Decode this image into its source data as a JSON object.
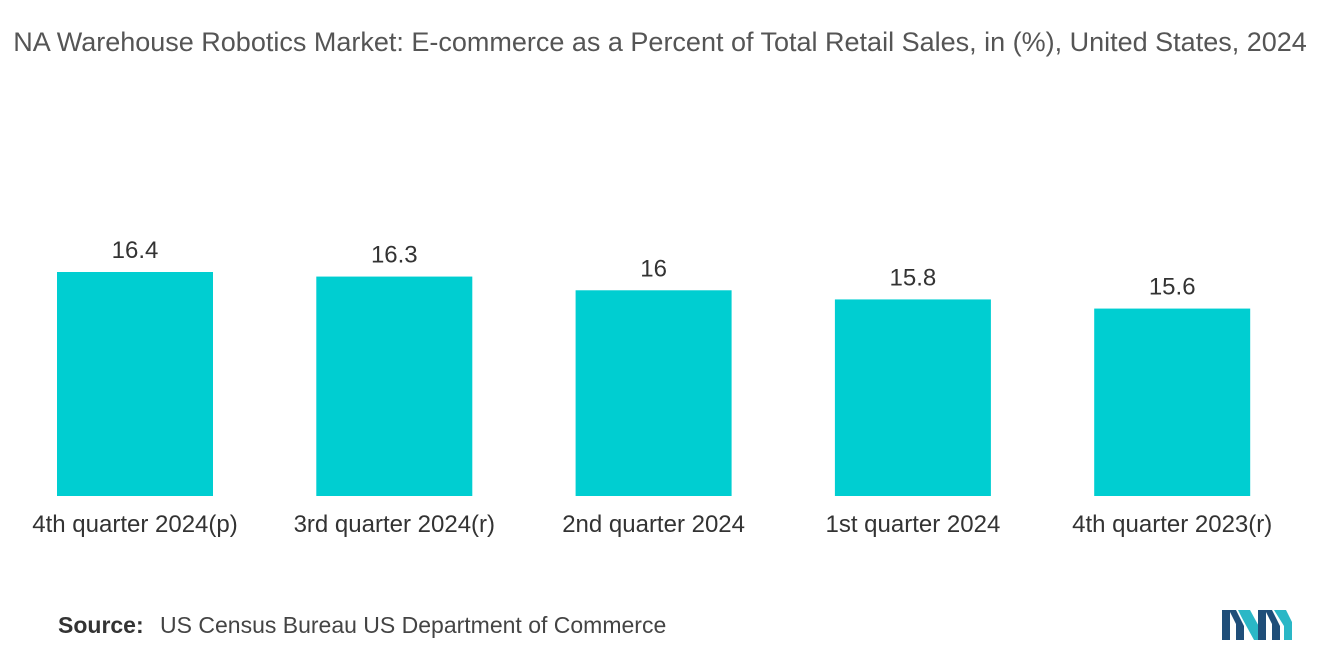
{
  "title": "NA Warehouse Robotics Market: E-commerce as a Percent of Total Retail Sales, in (%), United States, 2024",
  "chart_data": {
    "type": "bar",
    "title": "NA Warehouse Robotics Market: E-commerce as a Percent of Total Retail Sales, in (%), United States, 2024",
    "categories": [
      "4th quarter 2024(p)",
      "3rd quarter 2024(r)",
      "2nd quarter 2024",
      "1st quarter 2024",
      "4th quarter 2023(r)"
    ],
    "values": [
      16.4,
      16.3,
      16,
      15.8,
      15.6
    ],
    "value_labels": [
      "16.4",
      "16.3",
      "16",
      "15.8",
      "15.6"
    ],
    "xlabel": "",
    "ylabel": "",
    "ylim": [
      0,
      16.4
    ],
    "grid": false,
    "bar_color": "#00CED1"
  },
  "source": {
    "label": "Source:",
    "text": "US Census Bureau US Department of Commerce"
  },
  "logo": {
    "icon": "mordor-intelligence-logo",
    "colors": [
      "#1f4e79",
      "#2ab7c6"
    ]
  }
}
